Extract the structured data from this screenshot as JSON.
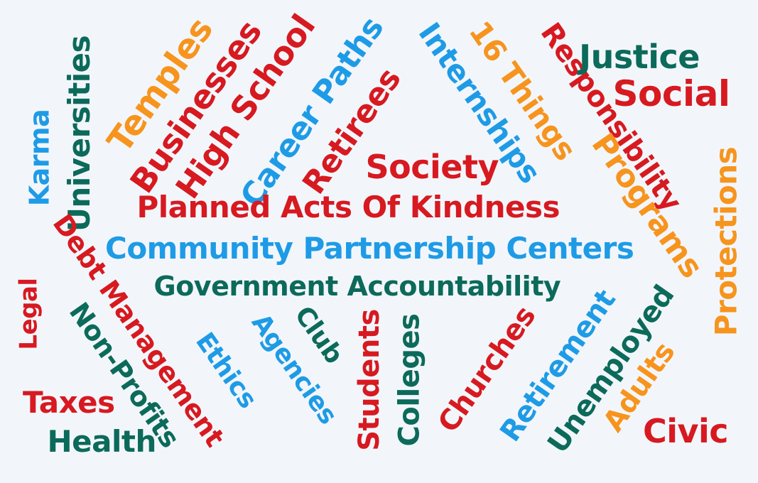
{
  "colors": {
    "red": "#d71920",
    "orange": "#f7941d",
    "blue": "#1e9be6",
    "teal": "#0c6a5a",
    "background": "#f2f6fb"
  },
  "words": {
    "temples": "Temples",
    "businesses": "Businesses",
    "high_school": "High School",
    "career_paths": "Career Paths",
    "retirees": "Retirees",
    "internships": "Internships",
    "sixteen_things": "16 Things",
    "responsibility": "Responsibility",
    "justice": "Justice",
    "social": "Social",
    "universities": "Universities",
    "karma": "Karma",
    "society": "Society",
    "programs": "Programs",
    "protections": "Protections",
    "planned_acts": "Planned Acts Of Kindness",
    "community_partnership": "Community Partnership Centers",
    "government_accountability": "Government Accountability",
    "debt_management": "Debt Management",
    "legal": "Legal",
    "non_profits": "Non-Profits",
    "ethics": "Ethics",
    "agencies": "Agencies",
    "club": "Club",
    "students": "Students",
    "colleges": "Colleges",
    "churches": "Churches",
    "retirement": "Retirement",
    "unemployed": "Unemployed",
    "adults": "Adults",
    "civic": "Civic",
    "taxes": "Taxes",
    "health": "Health"
  }
}
